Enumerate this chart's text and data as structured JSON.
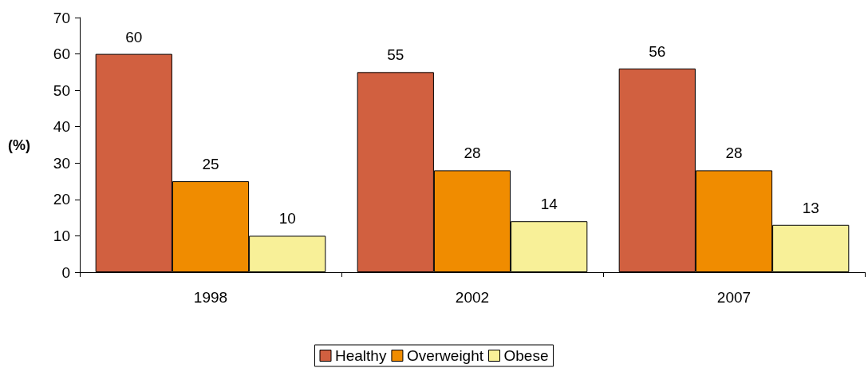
{
  "chart_data": {
    "type": "bar",
    "ylabel": "(%)",
    "categories": [
      "1998",
      "2002",
      "2007"
    ],
    "series": [
      {
        "name": "Healthy",
        "color": "#d16040",
        "values": [
          60,
          55,
          56
        ]
      },
      {
        "name": "Overweight",
        "color": "#f08c00",
        "values": [
          25,
          28,
          28
        ]
      },
      {
        "name": "Obese",
        "color": "#f8f098",
        "values": [
          10,
          14,
          13
        ]
      }
    ],
    "ylim": [
      0,
      70
    ],
    "yticks": [
      0,
      10,
      20,
      30,
      40,
      50,
      60,
      70
    ],
    "data_labels": true,
    "grid": false,
    "legend": "bottom"
  }
}
